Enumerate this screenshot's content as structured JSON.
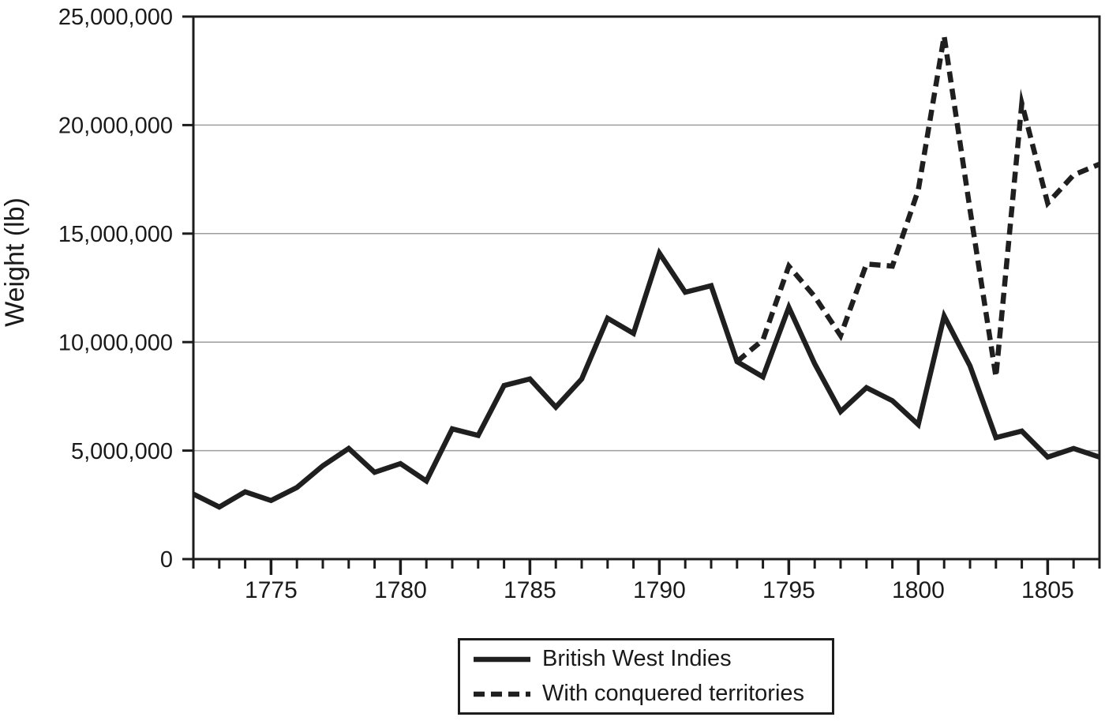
{
  "chart_data": {
    "type": "line",
    "title": "",
    "xlabel": "",
    "ylabel": "Weight (lb)",
    "xlim": [
      1772,
      1807
    ],
    "ylim": [
      0,
      25000000
    ],
    "grid": "horizontal-only",
    "legend_position": "bottom-center",
    "y_ticks": [
      0,
      5000000,
      10000000,
      15000000,
      20000000,
      25000000
    ],
    "y_tick_labels": [
      "0",
      "5,000,000",
      "10,000,000",
      "15,000,000",
      "20,000,000",
      "25,000,000"
    ],
    "x_major_ticks": [
      1775,
      1780,
      1785,
      1790,
      1795,
      1800,
      1805
    ],
    "x_major_tick_labels": [
      "1775",
      "1780",
      "1785",
      "1790",
      "1795",
      "1800",
      "1805"
    ],
    "x_minor_tick_interval": 1,
    "series": [
      {
        "name": "British West Indies",
        "line_style": "solid",
        "color": "#1f1f1f",
        "x": [
          1772,
          1773,
          1774,
          1775,
          1776,
          1777,
          1778,
          1779,
          1780,
          1781,
          1782,
          1783,
          1784,
          1785,
          1786,
          1787,
          1788,
          1789,
          1790,
          1791,
          1792,
          1793,
          1794,
          1795,
          1796,
          1797,
          1798,
          1799,
          1800,
          1801,
          1802,
          1803,
          1804,
          1805,
          1806,
          1807
        ],
        "y": [
          3000000,
          2400000,
          3100000,
          2700000,
          3300000,
          4300000,
          5100000,
          4000000,
          4400000,
          3600000,
          6000000,
          5700000,
          8000000,
          8300000,
          7000000,
          8300000,
          11100000,
          10400000,
          14100000,
          12300000,
          12600000,
          9100000,
          8400000,
          11600000,
          9000000,
          6800000,
          7900000,
          7300000,
          6200000,
          11200000,
          8900000,
          5600000,
          5900000,
          4700000,
          5100000,
          4700000
        ]
      },
      {
        "name": "With conquered territories",
        "line_style": "dashed",
        "color": "#1f1f1f",
        "x": [
          1793,
          1794,
          1795,
          1796,
          1797,
          1798,
          1799,
          1800,
          1801,
          1802,
          1803,
          1804,
          1805,
          1806,
          1807
        ],
        "y": [
          9100000,
          10100000,
          13500000,
          12100000,
          10300000,
          13600000,
          13500000,
          17000000,
          24100000,
          16100000,
          8400000,
          21000000,
          16400000,
          17700000,
          18200000
        ]
      }
    ]
  },
  "legend": {
    "items": [
      {
        "label": "British West Indies",
        "line_style": "solid"
      },
      {
        "label": "With conquered territories",
        "line_style": "dashed"
      }
    ]
  },
  "colors": {
    "line": "#1f1f1f",
    "grid": "#9e9e9e",
    "frame": "#1c1c1c",
    "text": "#1a1a1a",
    "background": "#ffffff"
  }
}
